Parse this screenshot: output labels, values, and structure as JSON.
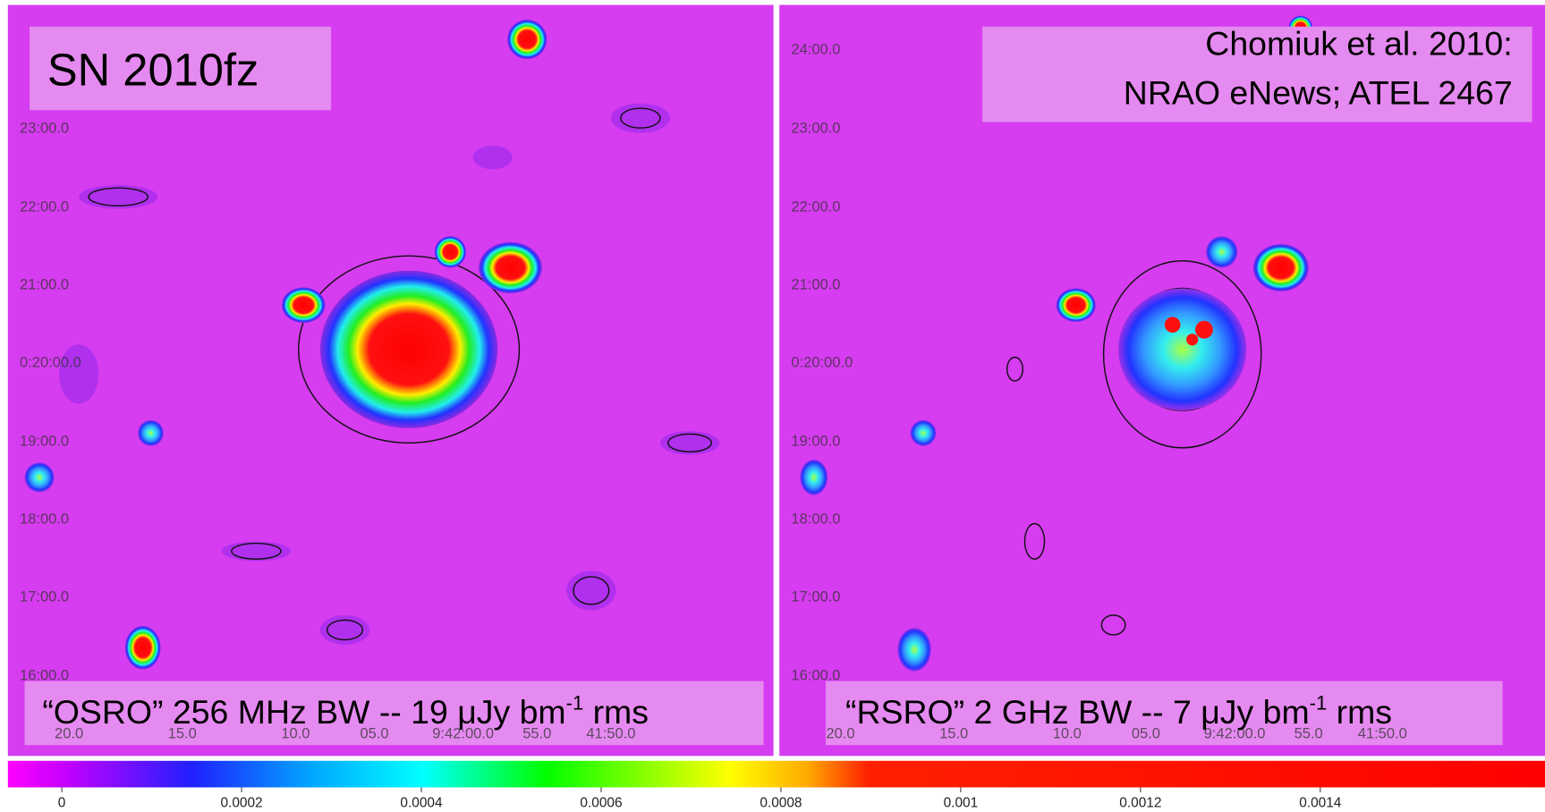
{
  "panels": [
    {
      "title": "SN 2010fz",
      "caption": {
        "text": "“OSRO” 256 MHz BW -- 19 μJy bm",
        "sup": "-1",
        "tail": " rms"
      },
      "y_labels": [
        "23:00.0",
        "22:00.0",
        "21:00.0",
        "0:20:00.0",
        "19:00.0",
        "18:00.0",
        "17:00.0",
        "16:00.0"
      ],
      "x_labels": [
        "20.0",
        "15.0",
        "10.0",
        "05.0",
        "9:42:00.0",
        "55.0",
        "41:50.0"
      ]
    },
    {
      "annotation": [
        "Chomiuk et al. 2010:",
        "NRAO eNews; ATEL 2467"
      ],
      "caption": {
        "text": "“RSRO” 2 GHz BW -- 7 μJy bm",
        "sup": "-1",
        "tail": " rms"
      },
      "y_labels": [
        "24:00.0",
        "23:00.0",
        "22:00.0",
        "21:00.0",
        "0:20:00.0",
        "19:00.0",
        "18:00.0",
        "17:00.0",
        "16:00.0"
      ],
      "x_labels": [
        "20.0",
        "15.0",
        "10.0",
        "05.0",
        "9:42:00.0",
        "55.0",
        "41:50.0"
      ]
    }
  ],
  "colorbar": {
    "range": [
      -6e-05,
      0.00165
    ],
    "ticks": [
      0,
      0.0002,
      0.0004,
      0.0006,
      0.0008,
      0.001,
      0.0012,
      0.0014
    ]
  }
}
